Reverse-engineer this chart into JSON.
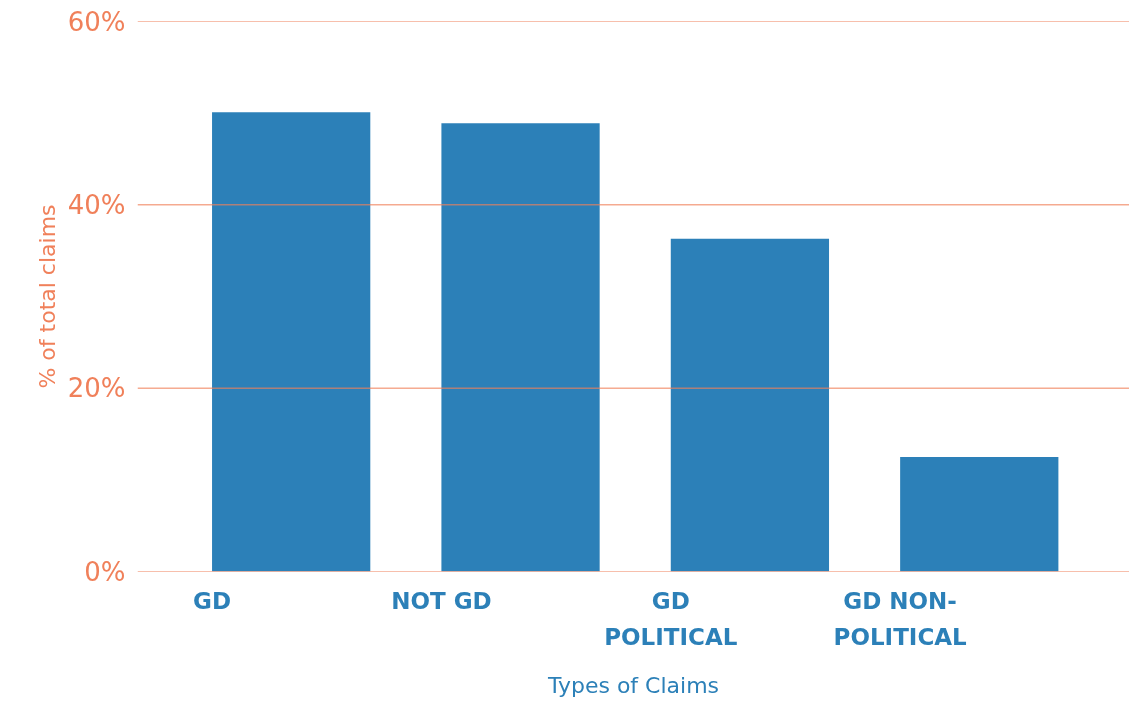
{
  "chart_data": {
    "type": "bar",
    "xlabel": "Types of Claims",
    "ylabel": "% of total claims",
    "categories": [
      "GD",
      "NOT GD",
      "GD POLITICAL",
      "GD NON-POLITICAL"
    ],
    "values": [
      50.1,
      48.9,
      36.3,
      12.5
    ],
    "color": "#2c80b8",
    "ylim": [
      0,
      60
    ],
    "yticks": [
      {
        "value": 0,
        "label": "0%"
      },
      {
        "value": 20,
        "label": "20%"
      },
      {
        "value": 40,
        "label": "40%"
      },
      {
        "value": 60,
        "label": "60%"
      }
    ],
    "grid": "y"
  }
}
